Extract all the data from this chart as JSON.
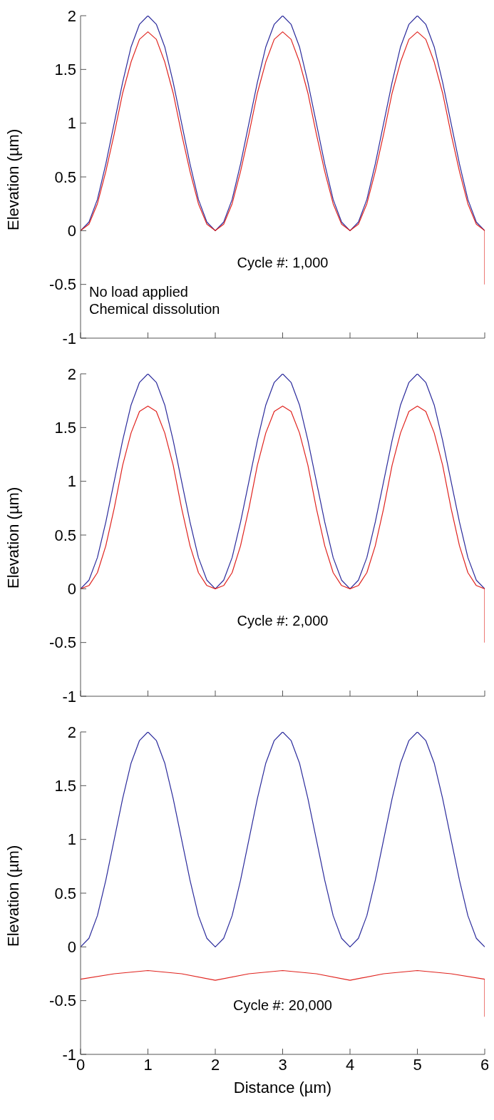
{
  "chart_data": [
    {
      "type": "line",
      "ylabel": "Elevation (µm)",
      "xlim": [
        0,
        6
      ],
      "xticks": [
        0,
        1,
        2,
        3,
        4,
        5,
        6
      ],
      "ylim": [
        -1,
        2
      ],
      "yticks": [
        -1,
        -0.5,
        0,
        0.5,
        1,
        1.5,
        2
      ],
      "tick_labels": "y",
      "annotations": [
        "Cycle #: 1,000",
        "No load applied",
        "Chemical dissolution"
      ],
      "series": [
        {
          "color": "#2b2b9c",
          "x": [
            0,
            0.125,
            0.25,
            0.375,
            0.5,
            0.625,
            0.75,
            0.875,
            1,
            1.125,
            1.25,
            1.375,
            1.5,
            1.625,
            1.75,
            1.875,
            2,
            2.125,
            2.25,
            2.375,
            2.5,
            2.625,
            2.75,
            2.875,
            3,
            3.125,
            3.25,
            3.375,
            3.5,
            3.625,
            3.75,
            3.875,
            4,
            4.125,
            4.25,
            4.375,
            4.5,
            4.625,
            4.75,
            4.875,
            5,
            5.125,
            5.25,
            5.375,
            5.5,
            5.625,
            5.75,
            5.875,
            6
          ],
          "values": [
            0,
            0.08,
            0.29,
            0.62,
            1,
            1.38,
            1.71,
            1.92,
            2,
            1.92,
            1.71,
            1.38,
            1,
            0.62,
            0.29,
            0.08,
            0,
            0.08,
            0.29,
            0.62,
            1,
            1.38,
            1.71,
            1.92,
            2,
            1.92,
            1.71,
            1.38,
            1,
            0.62,
            0.29,
            0.08,
            0,
            0.08,
            0.29,
            0.62,
            1,
            1.38,
            1.71,
            1.92,
            2,
            1.92,
            1.71,
            1.38,
            1,
            0.62,
            0.29,
            0.08,
            0
          ]
        },
        {
          "color": "#e0231e",
          "x": [
            0,
            0.125,
            0.25,
            0.375,
            0.5,
            0.625,
            0.75,
            0.875,
            1,
            1.125,
            1.25,
            1.375,
            1.5,
            1.625,
            1.75,
            1.875,
            2,
            2.125,
            2.25,
            2.375,
            2.5,
            2.625,
            2.75,
            2.875,
            3,
            3.125,
            3.25,
            3.375,
            3.5,
            3.625,
            3.75,
            3.875,
            4,
            4.125,
            4.25,
            4.375,
            4.5,
            4.625,
            4.75,
            4.875,
            5,
            5.125,
            5.25,
            5.375,
            5.5,
            5.625,
            5.75,
            5.875,
            6,
            6
          ],
          "values": [
            0,
            0.06,
            0.25,
            0.55,
            0.9,
            1.28,
            1.57,
            1.78,
            1.85,
            1.78,
            1.57,
            1.28,
            0.9,
            0.55,
            0.25,
            0.06,
            0,
            0.06,
            0.25,
            0.55,
            0.9,
            1.28,
            1.57,
            1.78,
            1.85,
            1.78,
            1.57,
            1.28,
            0.9,
            0.55,
            0.25,
            0.06,
            0,
            0.06,
            0.25,
            0.55,
            0.9,
            1.28,
            1.57,
            1.78,
            1.85,
            1.78,
            1.57,
            1.28,
            0.9,
            0.55,
            0.25,
            0.06,
            0,
            -0.5
          ]
        }
      ]
    },
    {
      "type": "line",
      "ylabel": "Elevation (µm)",
      "xlim": [
        0,
        6
      ],
      "xticks": [
        0,
        1,
        2,
        3,
        4,
        5,
        6
      ],
      "ylim": [
        -1,
        2
      ],
      "yticks": [
        -1,
        -0.5,
        0,
        0.5,
        1,
        1.5,
        2
      ],
      "tick_labels": "y",
      "annotations": [
        "Cycle #: 2,000"
      ],
      "series": [
        {
          "color": "#2b2b9c",
          "x": [
            0,
            0.125,
            0.25,
            0.375,
            0.5,
            0.625,
            0.75,
            0.875,
            1,
            1.125,
            1.25,
            1.375,
            1.5,
            1.625,
            1.75,
            1.875,
            2,
            2.125,
            2.25,
            2.375,
            2.5,
            2.625,
            2.75,
            2.875,
            3,
            3.125,
            3.25,
            3.375,
            3.5,
            3.625,
            3.75,
            3.875,
            4,
            4.125,
            4.25,
            4.375,
            4.5,
            4.625,
            4.75,
            4.875,
            5,
            5.125,
            5.25,
            5.375,
            5.5,
            5.625,
            5.75,
            5.875,
            6
          ],
          "values": [
            0,
            0.08,
            0.29,
            0.62,
            1,
            1.38,
            1.71,
            1.92,
            2,
            1.92,
            1.71,
            1.38,
            1,
            0.62,
            0.29,
            0.08,
            0,
            0.08,
            0.29,
            0.62,
            1,
            1.38,
            1.71,
            1.92,
            2,
            1.92,
            1.71,
            1.38,
            1,
            0.62,
            0.29,
            0.08,
            0,
            0.08,
            0.29,
            0.62,
            1,
            1.38,
            1.71,
            1.92,
            2,
            1.92,
            1.71,
            1.38,
            1,
            0.62,
            0.29,
            0.08,
            0
          ]
        },
        {
          "color": "#e0231e",
          "x": [
            0,
            0.125,
            0.25,
            0.375,
            0.5,
            0.625,
            0.75,
            0.875,
            1,
            1.125,
            1.25,
            1.375,
            1.5,
            1.625,
            1.75,
            1.875,
            2,
            2.125,
            2.25,
            2.375,
            2.5,
            2.625,
            2.75,
            2.875,
            3,
            3.125,
            3.25,
            3.375,
            3.5,
            3.625,
            3.75,
            3.875,
            4,
            4.125,
            4.25,
            4.375,
            4.5,
            4.625,
            4.75,
            4.875,
            5,
            5.125,
            5.25,
            5.375,
            5.5,
            5.625,
            5.75,
            5.875,
            6,
            6
          ],
          "values": [
            0,
            0.03,
            0.15,
            0.4,
            0.75,
            1.15,
            1.45,
            1.65,
            1.7,
            1.65,
            1.45,
            1.15,
            0.75,
            0.4,
            0.15,
            0.03,
            0,
            0.03,
            0.15,
            0.4,
            0.75,
            1.15,
            1.45,
            1.65,
            1.7,
            1.65,
            1.45,
            1.15,
            0.75,
            0.4,
            0.15,
            0.03,
            0,
            0.03,
            0.15,
            0.4,
            0.75,
            1.15,
            1.45,
            1.65,
            1.7,
            1.65,
            1.45,
            1.15,
            0.75,
            0.4,
            0.15,
            0.03,
            0,
            -0.5
          ]
        }
      ]
    },
    {
      "type": "line",
      "xlabel": "Distance (µm)",
      "ylabel": "Elevation (µm)",
      "xlim": [
        0,
        6
      ],
      "xticks": [
        0,
        1,
        2,
        3,
        4,
        5,
        6
      ],
      "ylim": [
        -1,
        2
      ],
      "yticks": [
        -1,
        -0.5,
        0,
        0.5,
        1,
        1.5,
        2
      ],
      "annotations": [
        "Cycle #: 20,000"
      ],
      "series": [
        {
          "color": "#2b2b9c",
          "x": [
            0,
            0.125,
            0.25,
            0.375,
            0.5,
            0.625,
            0.75,
            0.875,
            1,
            1.125,
            1.25,
            1.375,
            1.5,
            1.625,
            1.75,
            1.875,
            2,
            2.125,
            2.25,
            2.375,
            2.5,
            2.625,
            2.75,
            2.875,
            3,
            3.125,
            3.25,
            3.375,
            3.5,
            3.625,
            3.75,
            3.875,
            4,
            4.125,
            4.25,
            4.375,
            4.5,
            4.625,
            4.75,
            4.875,
            5,
            5.125,
            5.25,
            5.375,
            5.5,
            5.625,
            5.75,
            5.875,
            6
          ],
          "values": [
            0,
            0.08,
            0.29,
            0.62,
            1,
            1.38,
            1.71,
            1.92,
            2,
            1.92,
            1.71,
            1.38,
            1,
            0.62,
            0.29,
            0.08,
            0,
            0.08,
            0.29,
            0.62,
            1,
            1.38,
            1.71,
            1.92,
            2,
            1.92,
            1.71,
            1.38,
            1,
            0.62,
            0.29,
            0.08,
            0,
            0.08,
            0.29,
            0.62,
            1,
            1.38,
            1.71,
            1.92,
            2,
            1.92,
            1.71,
            1.38,
            1,
            0.62,
            0.29,
            0.08,
            0
          ]
        },
        {
          "color": "#e0231e",
          "x": [
            0,
            0.5,
            1,
            1.5,
            2,
            2.5,
            3,
            3.5,
            4,
            4.5,
            5,
            5.5,
            6,
            6
          ],
          "values": [
            -0.3,
            -0.25,
            -0.22,
            -0.25,
            -0.31,
            -0.25,
            -0.22,
            -0.25,
            -0.31,
            -0.25,
            -0.22,
            -0.25,
            -0.3,
            -0.65
          ]
        }
      ]
    }
  ]
}
